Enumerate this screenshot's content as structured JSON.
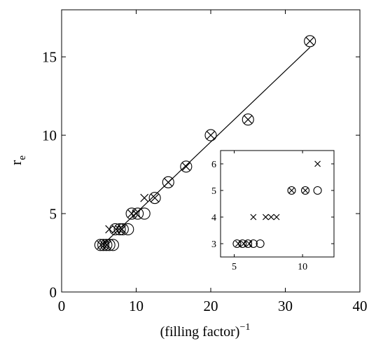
{
  "chart_data": [
    {
      "type": "scatter",
      "title": "",
      "xlabel": "(filling factor)",
      "xlabel_superscript": "−1",
      "ylabel": "r",
      "ylabel_subscript": "e",
      "xlim": [
        0,
        40
      ],
      "ylim": [
        0,
        18
      ],
      "xticks": [
        0,
        10,
        20,
        30,
        40
      ],
      "yticks": [
        0,
        5,
        10,
        15
      ],
      "grid": false,
      "legend": "none",
      "series": [
        {
          "marker": "circle",
          "x": [
            5.2,
            5.6,
            6.0,
            6.4,
            6.9,
            7.2,
            7.8,
            8.2,
            8.9,
            9.4,
            10.2,
            11.1,
            12.5,
            14.3,
            16.7,
            20.0,
            25.0,
            33.3
          ],
          "y": [
            3,
            3,
            3,
            3,
            3,
            4,
            4,
            4,
            4,
            5,
            5,
            5,
            6,
            7,
            8,
            10,
            11,
            16
          ]
        },
        {
          "marker": "cross",
          "x": [
            5.3,
            5.7,
            6.1,
            6.4,
            7.3,
            7.7,
            8.1,
            9.4,
            10.0,
            11.1,
            12.5,
            14.3,
            16.7,
            20.0,
            25.0,
            33.3
          ],
          "y": [
            3,
            3,
            3,
            4,
            4,
            4,
            4,
            5,
            5,
            6,
            6,
            7,
            8,
            10,
            11,
            16
          ]
        },
        {
          "marker": "line",
          "x": [
            5.5,
            33.3
          ],
          "y": [
            3.0,
            15.6
          ]
        }
      ]
    },
    {
      "type": "scatter",
      "title": "",
      "xlabel": "",
      "ylabel": "",
      "xlim": [
        4,
        12.3
      ],
      "ylim": [
        2.5,
        6.5
      ],
      "xticks": [
        5,
        10
      ],
      "yticks": [
        3,
        4,
        5,
        6
      ],
      "grid": false,
      "legend": "none",
      "series": [
        {
          "marker": "circle",
          "x": [
            5.2,
            5.6,
            6.0,
            6.4,
            6.9,
            9.2,
            10.2,
            11.1
          ],
          "y": [
            3,
            3,
            3,
            3,
            3,
            5,
            5,
            5
          ]
        },
        {
          "marker": "cross",
          "x": [
            5.3,
            5.7,
            6.1,
            6.4,
            7.3,
            7.7,
            8.1,
            9.2,
            10.2,
            11.1
          ],
          "y": [
            3,
            3,
            3,
            4,
            4,
            4,
            4,
            5,
            5,
            6
          ]
        }
      ]
    }
  ]
}
